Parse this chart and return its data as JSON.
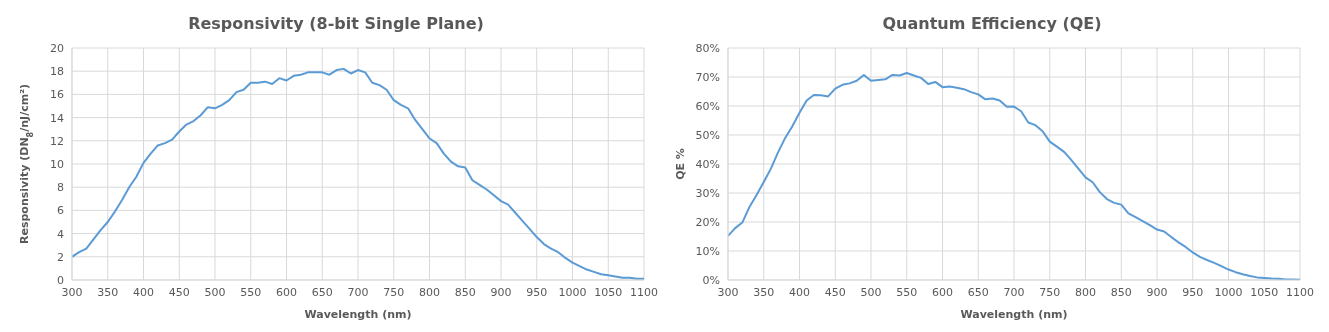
{
  "chart_data": [
    {
      "type": "line",
      "title": "Responsivity (8-bit Single Plane)",
      "xlabel": "Wavelength (nm)",
      "ylabel": "Responsivity (DN$_{8}$/nJ/cm²)",
      "color": "#5b9bd5",
      "grid": true,
      "x": [
        300,
        310,
        320,
        330,
        340,
        350,
        360,
        370,
        380,
        390,
        400,
        410,
        420,
        430,
        440,
        450,
        460,
        470,
        480,
        490,
        500,
        510,
        520,
        530,
        540,
        550,
        560,
        570,
        580,
        590,
        600,
        610,
        620,
        630,
        640,
        650,
        660,
        670,
        680,
        690,
        700,
        710,
        720,
        730,
        740,
        750,
        760,
        770,
        780,
        790,
        800,
        810,
        820,
        830,
        840,
        850,
        860,
        870,
        880,
        890,
        900,
        910,
        920,
        930,
        940,
        950,
        960,
        970,
        980,
        990,
        1000,
        1010,
        1020,
        1030,
        1040,
        1050,
        1060,
        1070,
        1080,
        1090,
        1100
      ],
      "values": [
        2.0,
        2.4,
        2.7,
        3.5,
        4.3,
        5.0,
        5.9,
        6.9,
        8.0,
        8.9,
        10.1,
        10.9,
        11.6,
        11.8,
        12.1,
        12.8,
        13.4,
        13.7,
        14.2,
        14.9,
        14.8,
        15.1,
        15.5,
        16.2,
        16.4,
        17.0,
        17.0,
        17.1,
        16.9,
        17.4,
        17.2,
        17.6,
        17.7,
        17.9,
        17.9,
        17.9,
        17.7,
        18.1,
        18.2,
        17.8,
        18.1,
        17.9,
        17.0,
        16.8,
        16.4,
        15.5,
        15.1,
        14.8,
        13.8,
        13.0,
        12.2,
        11.8,
        10.9,
        10.2,
        9.8,
        9.7,
        8.6,
        8.2,
        7.8,
        7.3,
        6.8,
        6.5,
        5.8,
        5.1,
        4.4,
        3.7,
        3.1,
        2.7,
        2.4,
        1.9,
        1.5,
        1.2,
        0.9,
        0.7,
        0.5,
        0.4,
        0.3,
        0.2,
        0.2,
        0.1,
        0.1
      ],
      "xlim": [
        300,
        1100
      ],
      "xticks": [
        300,
        350,
        400,
        450,
        500,
        550,
        600,
        650,
        700,
        750,
        800,
        850,
        900,
        950,
        1000,
        1050,
        1100
      ],
      "ylim": [
        0,
        20
      ],
      "yticks": [
        0,
        2,
        4,
        6,
        8,
        10,
        12,
        14,
        16,
        18,
        20
      ]
    },
    {
      "type": "line",
      "title": "Quantum Efficiency (QE)",
      "xlabel": "Wavelength (nm)",
      "ylabel": "QE %",
      "color": "#5b9bd5",
      "grid": true,
      "x": [
        300,
        310,
        320,
        330,
        340,
        350,
        360,
        370,
        380,
        390,
        400,
        410,
        420,
        430,
        440,
        450,
        460,
        470,
        480,
        490,
        500,
        510,
        520,
        530,
        540,
        550,
        560,
        570,
        580,
        590,
        600,
        610,
        620,
        630,
        640,
        650,
        660,
        670,
        680,
        690,
        700,
        710,
        720,
        730,
        740,
        750,
        760,
        770,
        780,
        790,
        800,
        810,
        820,
        830,
        840,
        850,
        860,
        870,
        880,
        890,
        900,
        910,
        920,
        930,
        940,
        950,
        960,
        970,
        980,
        990,
        1000,
        1010,
        1020,
        1030,
        1040,
        1050,
        1060,
        1070,
        1080,
        1090,
        1100
      ],
      "values": [
        15.2,
        17.9,
        19.8,
        25.2,
        29.3,
        33.8,
        38.4,
        44.0,
        49.0,
        53.0,
        57.7,
        61.9,
        63.8,
        63.7,
        63.3,
        66.0,
        67.3,
        67.8,
        68.7,
        70.7,
        68.7,
        69.0,
        69.2,
        70.7,
        70.5,
        71.4,
        70.5,
        69.7,
        67.6,
        68.3,
        66.5,
        66.7,
        66.3,
        65.8,
        64.8,
        64.0,
        62.3,
        62.6,
        61.9,
        59.7,
        59.8,
        58.2,
        54.3,
        53.4,
        51.3,
        47.7,
        46.0,
        44.2,
        41.4,
        38.4,
        35.4,
        33.7,
        30.3,
        27.9,
        26.6,
        26.0,
        23.0,
        21.7,
        20.3,
        18.9,
        17.4,
        16.7,
        14.8,
        13.0,
        11.4,
        9.5,
        8.0,
        6.9,
        5.9,
        4.8,
        3.6,
        2.7,
        2.0,
        1.4,
        0.9,
        0.7,
        0.5,
        0.4,
        0.2,
        0.2,
        0.1
      ],
      "xlim": [
        300,
        1100
      ],
      "xticks": [
        300,
        350,
        400,
        450,
        500,
        550,
        600,
        650,
        700,
        750,
        800,
        850,
        900,
        950,
        1000,
        1050,
        1100
      ],
      "ylim": [
        0,
        80
      ],
      "yticks": [
        {
          "value": 0,
          "label": "0%"
        },
        {
          "value": 10,
          "label": "10%"
        },
        {
          "value": 20,
          "label": "20%"
        },
        {
          "value": 30,
          "label": "30%"
        },
        {
          "value": 40,
          "label": "40%"
        },
        {
          "value": 50,
          "label": "50%"
        },
        {
          "value": 60,
          "label": "60%"
        },
        {
          "value": 70,
          "label": "70%"
        },
        {
          "value": 80,
          "label": "80%"
        }
      ]
    }
  ]
}
